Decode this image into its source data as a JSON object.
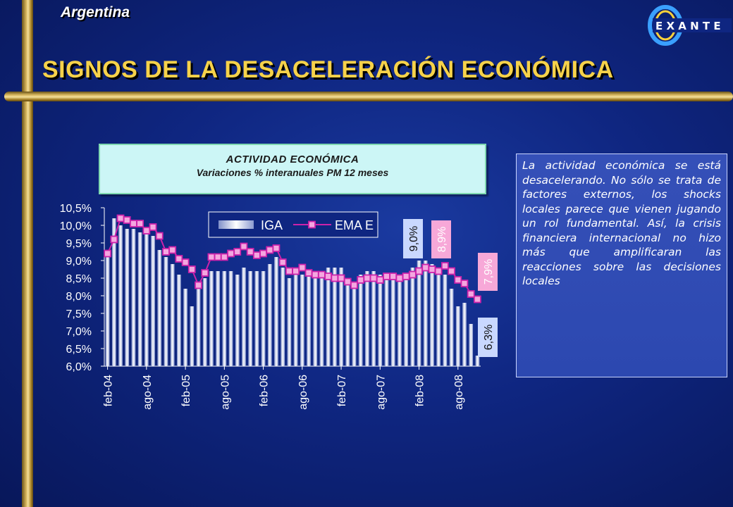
{
  "header": {
    "country": "Argentina",
    "title": "SIGNOS DE LA DESACELERACIÓN ECONÓMICA",
    "logo_text": "E X A N T E"
  },
  "chart_header": {
    "title": "ACTIVIDAD ECONÓMICA",
    "subtitle": "Variaciones % interanuales PM 12 meses"
  },
  "text_box": "La actividad económica se está desacelerando. No sólo se trata de factores externos, los shocks locales parece que vienen jugando un rol fundamental. Así, la crisis financiera internacional no hizo más que amplificaran las reacciones sobre las decisiones locales",
  "colors": {
    "background": "#0f2681",
    "gold": "#d9b860",
    "title": "#f6d24a",
    "line": "#cc22aa",
    "marker_fill": "#f4a6e0",
    "label_pink": "#f7a8d8",
    "label_blue": "#c9d8ff"
  },
  "chart_data": {
    "type": "bar+line",
    "ylim": [
      6.0,
      10.5
    ],
    "yticks": [
      "10,5%",
      "10,0%",
      "9,5%",
      "9,0%",
      "8,5%",
      "8,0%",
      "7,5%",
      "7,0%",
      "6,5%",
      "6,0%"
    ],
    "ytick_values": [
      10.5,
      10.0,
      9.5,
      9.0,
      8.5,
      8.0,
      7.5,
      7.0,
      6.5,
      6.0
    ],
    "xtick_labels": [
      "feb-04",
      "ago-04",
      "feb-05",
      "ago-05",
      "feb-06",
      "ago-06",
      "feb-07",
      "ago-07",
      "feb-08",
      "ago-08"
    ],
    "xtick_index": [
      0,
      6,
      12,
      18,
      24,
      30,
      36,
      42,
      48,
      54
    ],
    "legend": [
      "IGA",
      "EMA E"
    ],
    "series": [
      {
        "name": "IGA",
        "type": "bar",
        "values": [
          9.3,
          10.2,
          10.0,
          9.9,
          9.9,
          9.8,
          9.8,
          9.7,
          9.3,
          9.1,
          8.9,
          8.6,
          8.2,
          7.7,
          8.3,
          8.5,
          8.7,
          8.7,
          8.7,
          8.7,
          8.6,
          8.8,
          8.7,
          8.7,
          8.7,
          8.9,
          9.1,
          8.8,
          8.5,
          8.6,
          8.6,
          8.6,
          8.7,
          8.7,
          8.8,
          8.8,
          8.8,
          8.3,
          8.3,
          8.6,
          8.7,
          8.7,
          8.6,
          8.5,
          8.6,
          8.6,
          8.6,
          8.8,
          9.0,
          9.0,
          8.9,
          8.6,
          8.6,
          8.2,
          7.7,
          7.8,
          7.2,
          6.3
        ]
      },
      {
        "name": "EMA E",
        "type": "line",
        "values": [
          9.2,
          9.6,
          10.2,
          10.15,
          10.05,
          10.05,
          9.85,
          9.95,
          9.7,
          9.25,
          9.3,
          9.05,
          8.95,
          8.75,
          8.3,
          8.65,
          9.1,
          9.1,
          9.1,
          9.2,
          9.25,
          9.4,
          9.25,
          9.15,
          9.2,
          9.3,
          9.35,
          8.95,
          8.7,
          8.7,
          8.8,
          8.65,
          8.6,
          8.6,
          8.55,
          8.5,
          8.5,
          8.4,
          8.3,
          8.45,
          8.5,
          8.5,
          8.45,
          8.55,
          8.55,
          8.5,
          8.55,
          8.6,
          8.7,
          8.8,
          8.75,
          8.7,
          8.85,
          8.7,
          8.45,
          8.35,
          8.05,
          7.9
        ]
      }
    ],
    "annotations": [
      {
        "text": "9,0%",
        "style": "blue",
        "near_index": 49
      },
      {
        "text": "8,9%",
        "style": "pink",
        "near_index": 50
      },
      {
        "text": "7,9%",
        "style": "pink",
        "near_index": 57
      },
      {
        "text": "6,3%",
        "style": "blue",
        "near_index": 57
      }
    ]
  }
}
